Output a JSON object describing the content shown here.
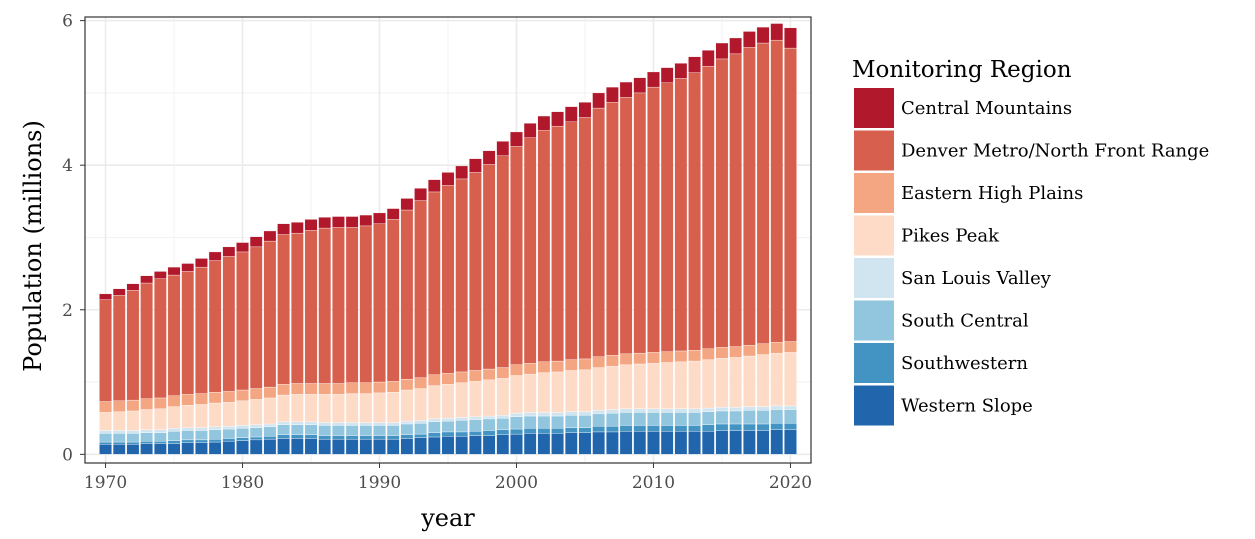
{
  "chart_data": {
    "type": "bar",
    "stacked": true,
    "xlabel": "year",
    "ylabel": "Population (millions)",
    "xlim": [
      1968.5,
      2021.5
    ],
    "ylim": [
      -0.12,
      6.05
    ],
    "x_ticks": [
      1970,
      1980,
      1990,
      2000,
      2010,
      2020
    ],
    "y_ticks": [
      0,
      2,
      4,
      6
    ],
    "grid": true,
    "legend": {
      "title": "Monitoring Region",
      "placement": "right"
    },
    "years": [
      1970,
      1971,
      1972,
      1973,
      1974,
      1975,
      1976,
      1977,
      1978,
      1979,
      1980,
      1981,
      1982,
      1983,
      1984,
      1985,
      1986,
      1987,
      1988,
      1989,
      1990,
      1991,
      1992,
      1993,
      1994,
      1995,
      1996,
      1997,
      1998,
      1999,
      2000,
      2001,
      2002,
      2003,
      2004,
      2005,
      2006,
      2007,
      2008,
      2009,
      2010,
      2011,
      2012,
      2013,
      2014,
      2015,
      2016,
      2017,
      2018,
      2019,
      2020
    ],
    "series": [
      {
        "name": "Western Slope",
        "color": "#2166ac",
        "values": [
          0.14,
          0.14,
          0.14,
          0.15,
          0.15,
          0.15,
          0.16,
          0.16,
          0.17,
          0.18,
          0.19,
          0.2,
          0.21,
          0.22,
          0.22,
          0.22,
          0.21,
          0.21,
          0.21,
          0.21,
          0.21,
          0.21,
          0.22,
          0.23,
          0.24,
          0.25,
          0.25,
          0.26,
          0.26,
          0.27,
          0.28,
          0.29,
          0.29,
          0.29,
          0.3,
          0.3,
          0.31,
          0.31,
          0.32,
          0.32,
          0.32,
          0.32,
          0.32,
          0.32,
          0.32,
          0.33,
          0.33,
          0.33,
          0.33,
          0.34,
          0.34
        ]
      },
      {
        "name": "Southwestern",
        "color": "#4393c3",
        "values": [
          0.03,
          0.03,
          0.03,
          0.03,
          0.03,
          0.04,
          0.04,
          0.04,
          0.04,
          0.04,
          0.04,
          0.04,
          0.04,
          0.05,
          0.05,
          0.05,
          0.05,
          0.05,
          0.05,
          0.05,
          0.05,
          0.05,
          0.05,
          0.05,
          0.06,
          0.06,
          0.06,
          0.06,
          0.07,
          0.07,
          0.07,
          0.07,
          0.07,
          0.07,
          0.07,
          0.07,
          0.08,
          0.08,
          0.08,
          0.08,
          0.08,
          0.08,
          0.08,
          0.08,
          0.09,
          0.09,
          0.09,
          0.09,
          0.09,
          0.09,
          0.09
        ]
      },
      {
        "name": "South Central",
        "color": "#92c5de",
        "values": [
          0.12,
          0.12,
          0.12,
          0.12,
          0.12,
          0.13,
          0.13,
          0.13,
          0.13,
          0.13,
          0.13,
          0.13,
          0.13,
          0.14,
          0.14,
          0.14,
          0.14,
          0.14,
          0.14,
          0.14,
          0.14,
          0.14,
          0.15,
          0.15,
          0.15,
          0.15,
          0.16,
          0.16,
          0.16,
          0.16,
          0.17,
          0.17,
          0.17,
          0.17,
          0.17,
          0.17,
          0.17,
          0.18,
          0.18,
          0.18,
          0.18,
          0.18,
          0.18,
          0.18,
          0.18,
          0.18,
          0.18,
          0.19,
          0.19,
          0.19,
          0.19
        ]
      },
      {
        "name": "San Louis Valley",
        "color": "#d1e5f0",
        "values": [
          0.04,
          0.04,
          0.04,
          0.04,
          0.04,
          0.04,
          0.04,
          0.04,
          0.04,
          0.04,
          0.04,
          0.04,
          0.04,
          0.04,
          0.04,
          0.04,
          0.04,
          0.04,
          0.04,
          0.04,
          0.04,
          0.04,
          0.04,
          0.04,
          0.04,
          0.04,
          0.04,
          0.04,
          0.04,
          0.04,
          0.05,
          0.05,
          0.05,
          0.05,
          0.05,
          0.05,
          0.05,
          0.05,
          0.05,
          0.05,
          0.05,
          0.05,
          0.05,
          0.05,
          0.05,
          0.05,
          0.05,
          0.05,
          0.05,
          0.05,
          0.05
        ]
      },
      {
        "name": "Pikes Peak",
        "color": "#fddbc7",
        "values": [
          0.25,
          0.26,
          0.27,
          0.28,
          0.29,
          0.3,
          0.31,
          0.32,
          0.33,
          0.33,
          0.34,
          0.35,
          0.36,
          0.37,
          0.38,
          0.38,
          0.39,
          0.39,
          0.4,
          0.4,
          0.41,
          0.42,
          0.43,
          0.44,
          0.46,
          0.47,
          0.48,
          0.49,
          0.5,
          0.51,
          0.52,
          0.53,
          0.55,
          0.56,
          0.57,
          0.58,
          0.59,
          0.6,
          0.61,
          0.62,
          0.63,
          0.64,
          0.65,
          0.66,
          0.67,
          0.68,
          0.69,
          0.7,
          0.72,
          0.73,
          0.74
        ]
      },
      {
        "name": "Eastern High Plains",
        "color": "#f4a582",
        "values": [
          0.15,
          0.15,
          0.15,
          0.15,
          0.15,
          0.15,
          0.15,
          0.15,
          0.15,
          0.15,
          0.15,
          0.15,
          0.15,
          0.15,
          0.15,
          0.15,
          0.15,
          0.15,
          0.15,
          0.15,
          0.15,
          0.15,
          0.15,
          0.15,
          0.15,
          0.15,
          0.15,
          0.15,
          0.15,
          0.15,
          0.15,
          0.15,
          0.15,
          0.15,
          0.15,
          0.15,
          0.15,
          0.15,
          0.15,
          0.15,
          0.15,
          0.15,
          0.15,
          0.15,
          0.15,
          0.15,
          0.15,
          0.15,
          0.15,
          0.15,
          0.15
        ]
      },
      {
        "name": "Denver Metro/North Front Range",
        "color": "#d6604d",
        "values": [
          1.41,
          1.46,
          1.52,
          1.6,
          1.65,
          1.67,
          1.7,
          1.75,
          1.82,
          1.87,
          1.91,
          1.96,
          2.02,
          2.07,
          2.08,
          2.12,
          2.15,
          2.16,
          2.15,
          2.17,
          2.19,
          2.24,
          2.34,
          2.45,
          2.53,
          2.6,
          2.67,
          2.74,
          2.83,
          2.93,
          3.02,
          3.12,
          3.2,
          3.25,
          3.29,
          3.34,
          3.44,
          3.5,
          3.55,
          3.6,
          3.67,
          3.72,
          3.77,
          3.84,
          3.91,
          3.99,
          4.05,
          4.12,
          4.16,
          4.18,
          4.06
        ]
      },
      {
        "name": "Central Mountains",
        "color": "#b2182b",
        "values": [
          0.08,
          0.09,
          0.09,
          0.1,
          0.1,
          0.11,
          0.11,
          0.12,
          0.12,
          0.13,
          0.13,
          0.14,
          0.14,
          0.15,
          0.15,
          0.15,
          0.15,
          0.15,
          0.15,
          0.15,
          0.15,
          0.15,
          0.16,
          0.17,
          0.17,
          0.18,
          0.18,
          0.19,
          0.19,
          0.2,
          0.2,
          0.2,
          0.2,
          0.2,
          0.21,
          0.21,
          0.21,
          0.21,
          0.21,
          0.21,
          0.21,
          0.21,
          0.21,
          0.22,
          0.22,
          0.22,
          0.22,
          0.22,
          0.22,
          0.23,
          0.28
        ]
      }
    ]
  }
}
